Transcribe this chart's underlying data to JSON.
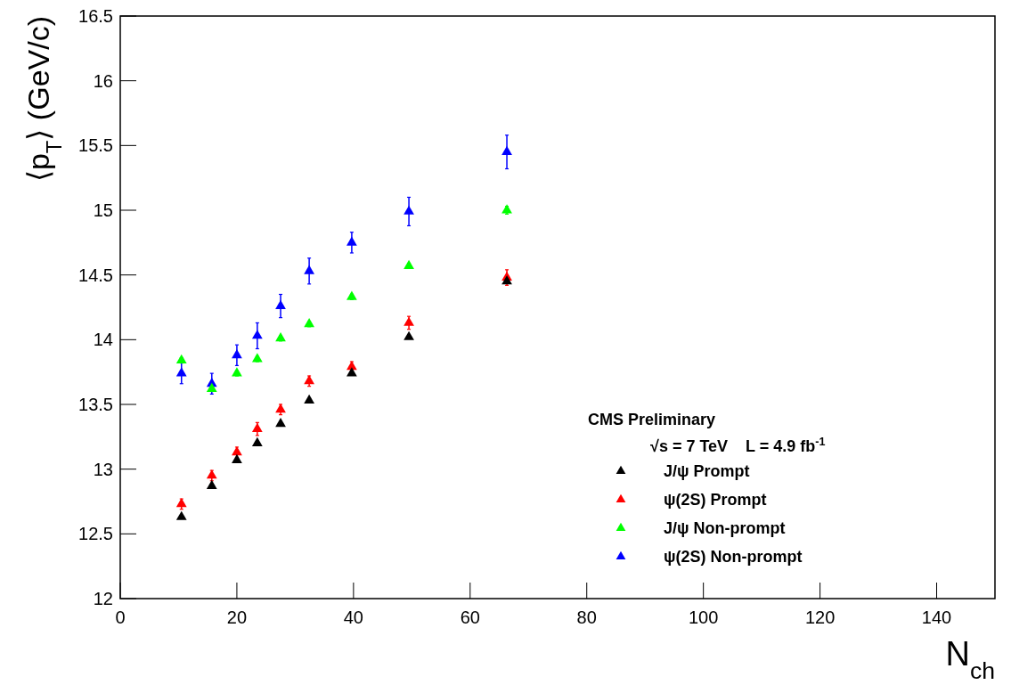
{
  "chart_data": {
    "type": "scatter",
    "xlabel": "N$_{ch}$",
    "ylabel": "⟨p$_{T}$⟩ (GeV/c)",
    "xlim": [
      0,
      150
    ],
    "xticks": [
      0,
      20,
      40,
      60,
      80,
      100,
      120,
      140
    ],
    "ylim": [
      12,
      16.5
    ],
    "yticks": [
      12,
      12.5,
      13,
      13.5,
      14,
      14.5,
      15,
      15.5,
      16,
      16.5
    ],
    "x": [
      10.5,
      15.7,
      20.0,
      23.5,
      27.5,
      32.4,
      39.7,
      49.5,
      66.3
    ],
    "marker": "triangle",
    "grid": false,
    "legend": "bottom right",
    "annotations": [
      "CMS Preliminary",
      "√s = 7 TeV    L = 4.9 fb$^{-1}$"
    ],
    "series": [
      {
        "name": "J/ψ Prompt",
        "color": "#000000",
        "values": [
          12.63,
          12.87,
          13.07,
          13.2,
          13.35,
          13.53,
          13.74,
          14.02,
          14.45
        ],
        "errors": [
          0.01,
          0.01,
          0.01,
          0.01,
          0.01,
          0.01,
          0.01,
          0.01,
          0.01
        ]
      },
      {
        "name": "ψ(2S) Prompt",
        "color": "#ff0000",
        "values": [
          12.73,
          12.95,
          13.13,
          13.31,
          13.46,
          13.68,
          13.79,
          14.13,
          14.48
        ],
        "errors": [
          0.04,
          0.04,
          0.04,
          0.05,
          0.04,
          0.04,
          0.04,
          0.05,
          0.06
        ]
      },
      {
        "name": "J/ψ Non-prompt",
        "color": "#00ff00",
        "values": [
          13.84,
          13.62,
          13.74,
          13.85,
          14.01,
          14.12,
          14.33,
          14.57,
          15.0
        ],
        "errors": [
          0.02,
          0.02,
          0.02,
          0.02,
          0.02,
          0.02,
          0.02,
          0.02,
          0.03
        ]
      },
      {
        "name": "ψ(2S) Non-prompt",
        "color": "#0000ff",
        "values": [
          13.74,
          13.66,
          13.88,
          14.03,
          14.26,
          14.53,
          14.75,
          14.99,
          15.45
        ],
        "errors": [
          0.08,
          0.08,
          0.08,
          0.1,
          0.09,
          0.1,
          0.08,
          0.11,
          0.13
        ]
      }
    ]
  }
}
